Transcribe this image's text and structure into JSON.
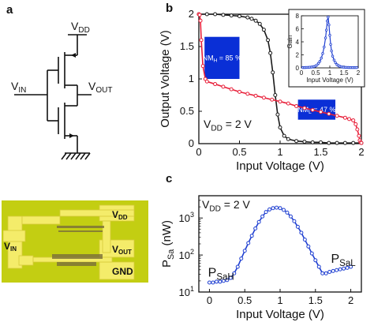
{
  "figure": {
    "labels": {
      "a": "a",
      "b": "b",
      "c": "c"
    },
    "colors": {
      "black_curve": "#1a1a1a",
      "red_curve": "#e8203a",
      "blue_curve": "#1f3fd1",
      "nm_box": "#0a2fd6",
      "photo_bg": "#c9d414",
      "pad": "#f4ec6a"
    }
  },
  "circuit": {
    "vdd": [
      "V",
      "DD"
    ],
    "vin": [
      "V",
      "IN"
    ],
    "vout": [
      "V",
      "OUT"
    ]
  },
  "photo": {
    "vdd": [
      "V",
      "DD"
    ],
    "vin": [
      "V",
      "IN"
    ],
    "vout": [
      "V",
      "OUT"
    ],
    "gnd": "GND"
  },
  "chart_data": [
    {
      "panel": "b",
      "type": "line",
      "xlabel": "Input Voltage (V)",
      "ylabel": "Output Voltage (V)",
      "xlim": [
        0,
        2
      ],
      "ylim": [
        0,
        2
      ],
      "xticks": [
        "0",
        "0.5",
        "1",
        "1.5",
        "2"
      ],
      "yticks": [
        "0",
        "0.5",
        "1",
        "1.5",
        "2"
      ],
      "series": [
        {
          "x": [
            0,
            0.1,
            0.2,
            0.3,
            0.4,
            0.5,
            0.6,
            0.65,
            0.7,
            0.75,
            0.8,
            0.85,
            0.88,
            0.91,
            0.94,
            0.97,
            1.0,
            1.05,
            1.1,
            1.2,
            1.3,
            1.4,
            1.5,
            1.6,
            1.7,
            1.8,
            1.9,
            2.0
          ],
          "y": [
            2,
            2,
            2,
            1.99,
            1.98,
            1.97,
            1.95,
            1.93,
            1.9,
            1.85,
            1.76,
            1.6,
            1.4,
            1.1,
            0.75,
            0.45,
            0.25,
            0.12,
            0.07,
            0.04,
            0.03,
            0.02,
            0.02,
            0.01,
            0.01,
            0.01,
            0.01,
            0.01
          ]
        },
        {
          "x": [
            0,
            0.01,
            0.02,
            0.03,
            0.05,
            0.08,
            0.1,
            0.2,
            0.3,
            0.4,
            0.5,
            0.6,
            0.7,
            0.8,
            0.9,
            1.0,
            1.1,
            1.2,
            1.3,
            1.4,
            1.5,
            1.6,
            1.7,
            1.8,
            1.85,
            1.9,
            1.93,
            1.95,
            1.97,
            1.98,
            1.99,
            2.0
          ],
          "y": [
            2,
            1.99,
            1.9,
            1.6,
            1.2,
            1.0,
            0.96,
            0.92,
            0.88,
            0.84,
            0.8,
            0.77,
            0.74,
            0.71,
            0.68,
            0.65,
            0.62,
            0.58,
            0.55,
            0.52,
            0.49,
            0.46,
            0.43,
            0.4,
            0.38,
            0.36,
            0.3,
            0.22,
            0.12,
            0.05,
            0.02,
            0.01
          ]
        }
      ],
      "boxes": [
        {
          "text": "NM",
          "sub": "H",
          "tail": " = 85 %",
          "x0": 0.07,
          "x1": 0.5,
          "y0": 1.0,
          "y1": 1.65
        },
        {
          "text": "NM",
          "sub": "L",
          "tail": " = 47 %",
          "x0": 1.22,
          "x1": 1.68,
          "y0": 0.37,
          "y1": 0.68
        }
      ],
      "annotation": {
        "main": "V",
        "sub": "DD",
        "tail": " = 2 V"
      },
      "inset": {
        "type": "line",
        "xlabel": "Input Voltage (V)",
        "ylabel": "Gain",
        "xlim": [
          0,
          2
        ],
        "ylim": [
          0,
          8
        ],
        "xticks": [
          "0",
          "0.5",
          "1",
          "1.5",
          "2"
        ],
        "yticks": [
          "0",
          "2",
          "4",
          "6",
          "8"
        ],
        "x": [
          0.05,
          0.1,
          0.15,
          0.2,
          0.25,
          0.3,
          0.35,
          0.4,
          0.45,
          0.5,
          0.55,
          0.6,
          0.65,
          0.7,
          0.75,
          0.8,
          0.85,
          0.88,
          0.91,
          0.94,
          0.97,
          1.0,
          1.03,
          1.06,
          1.1,
          1.15,
          1.2,
          1.25,
          1.3,
          1.35,
          1.4,
          1.45,
          1.5,
          1.55,
          1.6,
          1.65,
          1.7,
          1.75,
          1.8,
          1.85,
          1.9,
          1.95
        ],
        "y": [
          0.05,
          0.05,
          0.06,
          0.07,
          0.08,
          0.1,
          0.12,
          0.15,
          0.2,
          0.3,
          0.45,
          0.7,
          1.0,
          1.5,
          2.2,
          3.2,
          4.6,
          5.8,
          7.2,
          7.8,
          6.6,
          5.0,
          3.6,
          2.6,
          1.8,
          1.2,
          0.8,
          0.5,
          0.35,
          0.25,
          0.18,
          0.12,
          0.1,
          0.08,
          0.07,
          0.06,
          0.05,
          0.05,
          0.05,
          0.05,
          0.05,
          0.05
        ]
      }
    },
    {
      "panel": "c",
      "type": "line",
      "scale_y": "log",
      "xlabel": "Input Voltage (V)",
      "ylabel": {
        "main": "P",
        "sub": "Sa",
        "tail": " (nW)"
      },
      "xlim": [
        -0.15,
        2.15
      ],
      "ylim": [
        10,
        4000
      ],
      "xticks": [
        "0",
        "0.5",
        "1",
        "1.5",
        "2"
      ],
      "yticks": [
        {
          "base": "10",
          "exp": "1"
        },
        {
          "base": "10",
          "exp": "2"
        },
        {
          "base": "10",
          "exp": "3"
        }
      ],
      "x": [
        0,
        0.05,
        0.1,
        0.15,
        0.2,
        0.25,
        0.3,
        0.35,
        0.4,
        0.45,
        0.5,
        0.55,
        0.6,
        0.65,
        0.7,
        0.75,
        0.8,
        0.85,
        0.9,
        0.95,
        1.0,
        1.05,
        1.1,
        1.15,
        1.2,
        1.25,
        1.3,
        1.35,
        1.4,
        1.45,
        1.5,
        1.55,
        1.6,
        1.65,
        1.7,
        1.75,
        1.8,
        1.85,
        1.9,
        1.95,
        2.0
      ],
      "y": [
        18,
        18,
        19,
        19,
        20,
        21,
        24,
        32,
        48,
        80,
        130,
        210,
        330,
        520,
        780,
        1100,
        1450,
        1700,
        1850,
        1900,
        1850,
        1650,
        1400,
        1100,
        820,
        580,
        400,
        260,
        170,
        110,
        72,
        48,
        32,
        32,
        35,
        37,
        39,
        41,
        43,
        45,
        48
      ],
      "annotations": [
        {
          "main": "V",
          "sub": "DD",
          "tail": " = 2 V"
        },
        {
          "main": "P",
          "sub": "SaH",
          "tail": ""
        },
        {
          "main": "P",
          "sub": "SaL",
          "tail": ""
        }
      ]
    }
  ]
}
